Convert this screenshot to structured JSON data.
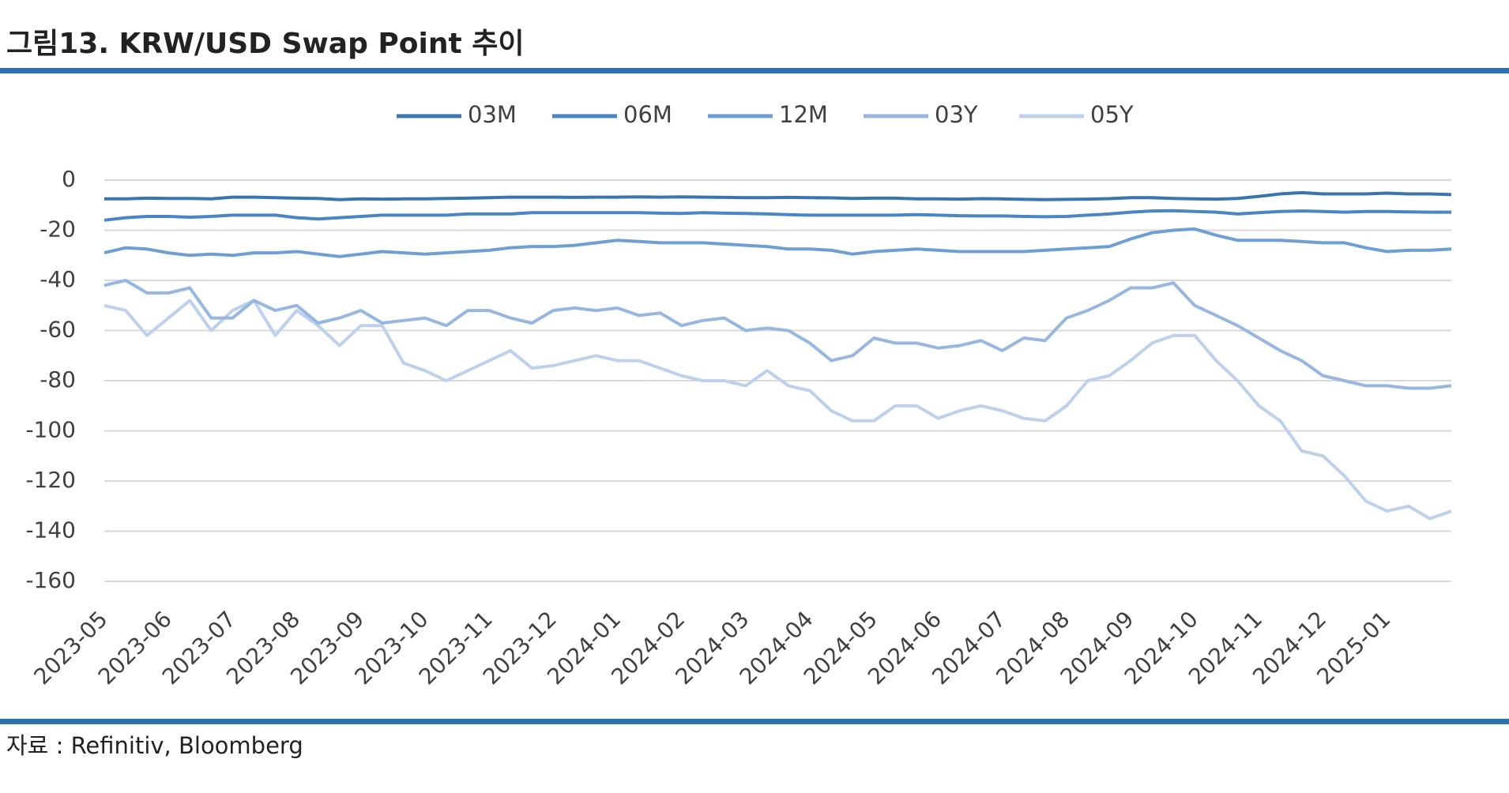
{
  "header": {
    "title": "그림13. KRW/USD Swap Point 추이"
  },
  "chart_data": {
    "type": "line",
    "categories": [
      "2023-05",
      null,
      null,
      "2023-06",
      null,
      null,
      "2023-07",
      null,
      null,
      "2023-08",
      null,
      null,
      "2023-09",
      null,
      null,
      "2023-10",
      null,
      null,
      "2023-11",
      null,
      null,
      "2023-12",
      null,
      null,
      "2024-01",
      null,
      null,
      "2024-02",
      null,
      null,
      "2024-03",
      null,
      null,
      "2024-04",
      null,
      null,
      "2024-05",
      null,
      null,
      "2024-06",
      null,
      null,
      "2024-07",
      null,
      null,
      "2024-08",
      null,
      null,
      "2024-09",
      null,
      null,
      "2024-10",
      null,
      null,
      "2024-11",
      null,
      null,
      "2024-12",
      null,
      null,
      "2025-01",
      null,
      null,
      null
    ],
    "series": [
      {
        "name": "03M",
        "color": "#3a75ae",
        "values": [
          -7.5,
          -7.5,
          -7.2,
          -7.3,
          -7.3,
          -7.5,
          -6.8,
          -6.8,
          -7,
          -7.2,
          -7.3,
          -7.8,
          -7.5,
          -7.6,
          -7.5,
          -7.5,
          -7.3,
          -7.2,
          -7,
          -6.8,
          -6.8,
          -6.8,
          -6.9,
          -6.8,
          -6.8,
          -6.7,
          -6.8,
          -6.7,
          -6.8,
          -6.9,
          -7,
          -7,
          -6.9,
          -7,
          -7.1,
          -7.3,
          -7.2,
          -7.2,
          -7.5,
          -7.5,
          -7.6,
          -7.4,
          -7.5,
          -7.7,
          -7.8,
          -7.7,
          -7.6,
          -7.4,
          -7,
          -7,
          -7.3,
          -7.5,
          -7.6,
          -7.3,
          -6.5,
          -5.5,
          -5,
          -5.5,
          -5.5,
          -5.5,
          -5.2,
          -5.5,
          -5.5,
          -5.8
        ]
      },
      {
        "name": "06M",
        "color": "#4a86c4",
        "values": [
          -16,
          -15,
          -14.5,
          -14.5,
          -14.8,
          -14.5,
          -14,
          -14,
          -14,
          -15,
          -15.5,
          -15,
          -14.5,
          -14,
          -14,
          -14,
          -14,
          -13.5,
          -13.5,
          -13.5,
          -13,
          -13,
          -13,
          -13,
          -13,
          -13,
          -13.2,
          -13.3,
          -13,
          -13.2,
          -13.3,
          -13.5,
          -13.8,
          -14,
          -14,
          -14,
          -14,
          -14,
          -13.8,
          -14,
          -14.2,
          -14.3,
          -14.3,
          -14.5,
          -14.6,
          -14.5,
          -14,
          -13.5,
          -12.8,
          -12.3,
          -12.2,
          -12.5,
          -12.8,
          -13.5,
          -13,
          -12.5,
          -12.3,
          -12.5,
          -12.8,
          -12.5,
          -12.5,
          -12.7,
          -12.8,
          -12.8
        ]
      },
      {
        "name": "12M",
        "color": "#6e9fd2",
        "values": [
          -29,
          -27,
          -27.5,
          -29,
          -30,
          -29.5,
          -30,
          -29,
          -29,
          -28.5,
          -29.5,
          -30.5,
          -29.5,
          -28.5,
          -29,
          -29.5,
          -29,
          -28.5,
          -28,
          -27,
          -26.5,
          -26.5,
          -26,
          -25,
          -24,
          -24.5,
          -25,
          -25,
          -25,
          -25.5,
          -26,
          -26.5,
          -27.5,
          -27.5,
          -28,
          -29.5,
          -28.5,
          -28,
          -27.5,
          -28,
          -28.5,
          -28.5,
          -28.5,
          -28.5,
          -28,
          -27.5,
          -27,
          -26.5,
          -23.5,
          -21,
          -20,
          -19.5,
          -22,
          -24,
          -24,
          -24,
          -24.5,
          -25,
          -25,
          -27,
          -28.5,
          -28,
          -28,
          -27.5
        ]
      },
      {
        "name": "03Y",
        "color": "#97b7e0",
        "values": [
          -42,
          -40,
          -45,
          -45,
          -43,
          -55,
          -55,
          -48,
          -52,
          -50,
          -57,
          -55,
          -52,
          -57,
          -56,
          -55,
          -58,
          -52,
          -52,
          -55,
          -57,
          -52,
          -51,
          -52,
          -51,
          -54,
          -53,
          -58,
          -56,
          -55,
          -60,
          -59,
          -60,
          -65,
          -72,
          -70,
          -63,
          -65,
          -65,
          -67,
          -66,
          -64,
          -68,
          -63,
          -64,
          -55,
          -52,
          -48,
          -43,
          -43,
          -41,
          -50,
          -54,
          -58,
          -63,
          -68,
          -72,
          -78,
          -80,
          -82,
          -82,
          -83,
          -83,
          -82
        ]
      },
      {
        "name": "05Y",
        "color": "#bdd0ec",
        "values": [
          -50,
          -52,
          -62,
          -55,
          -48,
          -60,
          -52,
          -48,
          -62,
          -52,
          -58,
          -66,
          -58,
          -58,
          -73,
          -76,
          -80,
          -76,
          -72,
          -68,
          -75,
          -74,
          -72,
          -70,
          -72,
          -72,
          -75,
          -78,
          -80,
          -80,
          -82,
          -76,
          -82,
          -84,
          -92,
          -96,
          -96,
          -90,
          -90,
          -95,
          -92,
          -90,
          -92,
          -95,
          -96,
          -90,
          -80,
          -78,
          -72,
          -65,
          -62,
          -62,
          -72,
          -80,
          -90,
          -96,
          -108,
          -110,
          -118,
          -128,
          -132,
          -130,
          -135,
          -132
        ]
      }
    ],
    "ylim": [
      -160,
      0
    ],
    "yticks": [
      -160,
      -140,
      -120,
      -100,
      -80,
      -60,
      -40,
      -20,
      0
    ],
    "grid": true,
    "legend": "top"
  },
  "footer": {
    "source": "자료 : Refinitiv, Bloomberg"
  }
}
